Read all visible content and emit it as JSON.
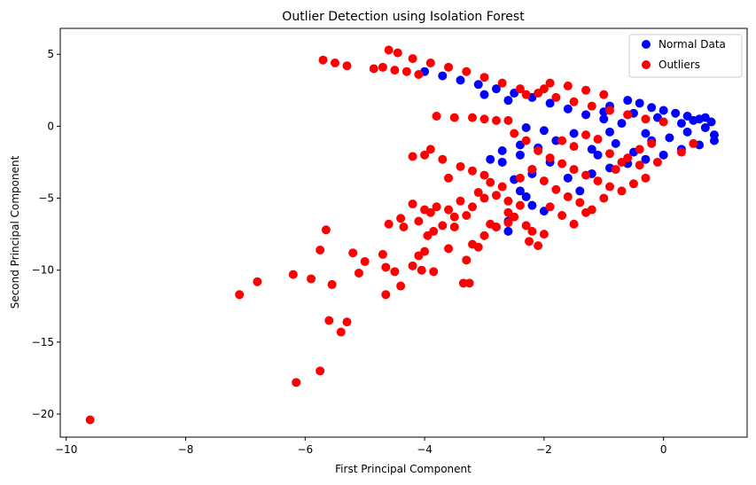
{
  "chart_data": {
    "type": "scatter",
    "title": "Outlier Detection using Isolation Forest",
    "xlabel": "First Principal Component",
    "ylabel": "Second Principal Component",
    "xlim": [
      -10.1,
      1.4
    ],
    "ylim": [
      -21.6,
      6.8
    ],
    "xticks": [
      -10,
      -8,
      -6,
      -4,
      -2,
      0
    ],
    "yticks": [
      -20,
      -15,
      -10,
      -5,
      0,
      5
    ],
    "grid": false,
    "legend_position": "top-right",
    "series": [
      {
        "name": "Normal Data",
        "color": "#0000ff",
        "points": [
          [
            -0.6,
            1.8
          ],
          [
            -0.4,
            1.6
          ],
          [
            -0.2,
            1.3
          ],
          [
            0.0,
            1.1
          ],
          [
            0.2,
            0.9
          ],
          [
            0.4,
            0.7
          ],
          [
            0.6,
            0.5
          ],
          [
            0.8,
            0.3
          ],
          [
            -0.9,
            1.4
          ],
          [
            -0.5,
            0.9
          ],
          [
            -0.1,
            0.6
          ],
          [
            0.3,
            0.2
          ],
          [
            0.7,
            -0.1
          ],
          [
            0.85,
            -0.6
          ],
          [
            0.85,
            -1.0
          ],
          [
            0.6,
            -1.3
          ],
          [
            0.3,
            -1.6
          ],
          [
            0.0,
            -2.0
          ],
          [
            -0.3,
            -2.3
          ],
          [
            -0.6,
            -2.6
          ],
          [
            -0.9,
            -2.9
          ],
          [
            -1.2,
            -3.3
          ],
          [
            -0.3,
            -0.5
          ],
          [
            0.1,
            -0.8
          ],
          [
            -0.7,
            0.2
          ],
          [
            -1.0,
            0.5
          ],
          [
            -1.3,
            0.8
          ],
          [
            -1.6,
            1.2
          ],
          [
            -1.9,
            1.6
          ],
          [
            -2.2,
            2.0
          ],
          [
            -2.5,
            2.3
          ],
          [
            -2.8,
            2.6
          ],
          [
            -3.1,
            2.9
          ],
          [
            -3.4,
            3.2
          ],
          [
            -3.7,
            3.5
          ],
          [
            -4.0,
            3.8
          ],
          [
            -1.5,
            -0.5
          ],
          [
            -1.8,
            -1.0
          ],
          [
            -2.1,
            -1.5
          ],
          [
            -2.4,
            -2.0
          ],
          [
            -2.7,
            -2.5
          ],
          [
            -2.7,
            -1.7
          ],
          [
            -2.3,
            -0.1
          ],
          [
            -2.0,
            -0.3
          ],
          [
            -2.4,
            -1.3
          ],
          [
            -2.2,
            -3.0
          ],
          [
            -2.4,
            -4.5
          ],
          [
            -2.2,
            -5.5
          ],
          [
            -2.0,
            -5.9
          ],
          [
            -2.6,
            -6.6
          ],
          [
            -2.6,
            -7.3
          ],
          [
            -2.8,
            -7.0
          ],
          [
            -1.4,
            -4.5
          ],
          [
            -1.1,
            -2.0
          ],
          [
            -0.8,
            -1.2
          ],
          [
            -0.5,
            -1.8
          ],
          [
            -0.2,
            -1.0
          ],
          [
            0.4,
            -0.4
          ],
          [
            0.5,
            0.4
          ],
          [
            0.7,
            0.6
          ],
          [
            -1.0,
            1.0
          ],
          [
            -0.6,
            0.8
          ],
          [
            -2.5,
            -3.7
          ],
          [
            -2.3,
            -4.9
          ],
          [
            -2.2,
            -3.3
          ],
          [
            -1.9,
            -2.5
          ],
          [
            -2.9,
            -2.3
          ],
          [
            -3.0,
            2.2
          ],
          [
            -2.6,
            1.8
          ],
          [
            -1.2,
            -1.6
          ],
          [
            -0.9,
            -0.4
          ],
          [
            -1.6,
            -3.6
          ]
        ]
      },
      {
        "name": "Outliers",
        "color": "#ff0000",
        "points": [
          [
            -9.6,
            -20.4
          ],
          [
            -6.15,
            -17.8
          ],
          [
            -5.75,
            -17.0
          ],
          [
            -7.1,
            -11.7
          ],
          [
            -6.8,
            -10.8
          ],
          [
            -6.2,
            -10.3
          ],
          [
            -5.9,
            -10.6
          ],
          [
            -5.65,
            -7.2
          ],
          [
            -5.75,
            -8.6
          ],
          [
            -5.55,
            -11.0
          ],
          [
            -5.6,
            -13.5
          ],
          [
            -5.4,
            -14.3
          ],
          [
            -5.3,
            -13.6
          ],
          [
            -5.1,
            -10.2
          ],
          [
            -5.0,
            -9.4
          ],
          [
            -5.2,
            -8.8
          ],
          [
            -4.65,
            -11.7
          ],
          [
            -4.4,
            -11.1
          ],
          [
            -4.7,
            -8.9
          ],
          [
            -4.65,
            -9.8
          ],
          [
            -4.5,
            -10.1
          ],
          [
            -4.6,
            -6.8
          ],
          [
            -4.4,
            -6.4
          ],
          [
            -4.35,
            -7.0
          ],
          [
            -4.2,
            -9.7
          ],
          [
            -4.05,
            -10.0
          ],
          [
            -3.85,
            -10.1
          ],
          [
            -4.0,
            -8.7
          ],
          [
            -4.1,
            -9.0
          ],
          [
            -3.95,
            -7.6
          ],
          [
            -3.85,
            -7.3
          ],
          [
            -3.6,
            -8.5
          ],
          [
            -3.7,
            -6.9
          ],
          [
            -3.5,
            -6.3
          ],
          [
            -3.35,
            -10.9
          ],
          [
            -3.25,
            -10.9
          ],
          [
            -3.3,
            -9.3
          ],
          [
            -3.2,
            -8.2
          ],
          [
            -3.1,
            -8.4
          ],
          [
            -3.0,
            -7.6
          ],
          [
            -2.9,
            -6.8
          ],
          [
            -2.8,
            -7.0
          ],
          [
            -2.6,
            -6.7
          ],
          [
            -2.5,
            -6.3
          ],
          [
            -2.3,
            -6.9
          ],
          [
            -2.2,
            -7.3
          ],
          [
            -2.25,
            -8.0
          ],
          [
            -2.1,
            -8.3
          ],
          [
            -4.2,
            -5.4
          ],
          [
            -4.0,
            -5.8
          ],
          [
            -3.8,
            -5.6
          ],
          [
            -3.6,
            -5.8
          ],
          [
            -3.4,
            -5.2
          ],
          [
            -3.2,
            -5.6
          ],
          [
            -3.0,
            -5.0
          ],
          [
            -2.8,
            -4.8
          ],
          [
            -2.7,
            -4.2
          ],
          [
            -2.6,
            -5.2
          ],
          [
            -3.9,
            -1.6
          ],
          [
            -3.7,
            -2.3
          ],
          [
            -3.4,
            -2.8
          ],
          [
            -3.2,
            -3.1
          ],
          [
            -3.0,
            -3.4
          ],
          [
            -3.8,
            0.7
          ],
          [
            -3.5,
            0.6
          ],
          [
            -3.2,
            0.6
          ],
          [
            -3.0,
            0.5
          ],
          [
            -2.8,
            0.4
          ],
          [
            -2.6,
            0.4
          ],
          [
            -4.0,
            -2.0
          ],
          [
            -4.2,
            -2.1
          ],
          [
            -5.7,
            4.6
          ],
          [
            -5.5,
            4.4
          ],
          [
            -5.3,
            4.2
          ],
          [
            -4.85,
            4.0
          ],
          [
            -4.7,
            4.1
          ],
          [
            -4.5,
            3.9
          ],
          [
            -4.3,
            3.8
          ],
          [
            -4.1,
            3.6
          ],
          [
            -4.6,
            5.3
          ],
          [
            -4.45,
            5.1
          ],
          [
            -4.2,
            4.7
          ],
          [
            -3.9,
            4.4
          ],
          [
            -3.6,
            4.1
          ],
          [
            -3.3,
            3.8
          ],
          [
            -3.0,
            3.4
          ],
          [
            -2.7,
            3.0
          ],
          [
            -2.4,
            2.6
          ],
          [
            -2.1,
            2.3
          ],
          [
            -1.8,
            2.0
          ],
          [
            -1.5,
            1.7
          ],
          [
            -1.2,
            1.4
          ],
          [
            -0.9,
            1.1
          ],
          [
            -0.6,
            0.8
          ],
          [
            -0.3,
            0.5
          ],
          [
            0.0,
            0.3
          ],
          [
            -1.9,
            3.0
          ],
          [
            -1.6,
            2.8
          ],
          [
            -1.3,
            2.5
          ],
          [
            -1.0,
            2.2
          ],
          [
            -2.3,
            2.2
          ],
          [
            -2.0,
            2.6
          ],
          [
            -2.5,
            -0.5
          ],
          [
            -2.3,
            -1.0
          ],
          [
            -2.1,
            -1.7
          ],
          [
            -1.9,
            -2.2
          ],
          [
            -1.7,
            -2.6
          ],
          [
            -1.5,
            -3.0
          ],
          [
            -1.3,
            -3.4
          ],
          [
            -1.1,
            -3.8
          ],
          [
            -0.9,
            -4.2
          ],
          [
            -0.7,
            -4.5
          ],
          [
            -0.5,
            -4.0
          ],
          [
            -0.3,
            -3.6
          ],
          [
            -2.4,
            -3.6
          ],
          [
            -2.2,
            -3.0
          ],
          [
            -2.0,
            -3.8
          ],
          [
            -1.8,
            -4.4
          ],
          [
            -1.6,
            -4.9
          ],
          [
            -1.4,
            -5.3
          ],
          [
            -1.2,
            -5.8
          ],
          [
            -1.0,
            -5.0
          ],
          [
            -0.8,
            -3.0
          ],
          [
            -0.6,
            -2.2
          ],
          [
            -0.4,
            -1.6
          ],
          [
            -0.2,
            -1.2
          ],
          [
            -1.7,
            -1.0
          ],
          [
            -1.5,
            -1.4
          ],
          [
            -1.3,
            -0.6
          ],
          [
            -1.1,
            -0.9
          ],
          [
            -0.9,
            -1.9
          ],
          [
            -0.7,
            -2.5
          ],
          [
            -1.9,
            -5.6
          ],
          [
            -1.7,
            -6.2
          ],
          [
            -1.5,
            -6.8
          ],
          [
            -1.3,
            -6.0
          ],
          [
            -2.0,
            -7.5
          ],
          [
            -3.6,
            -3.6
          ],
          [
            -3.1,
            -4.6
          ],
          [
            -2.9,
            -3.9
          ],
          [
            -0.4,
            -2.7
          ],
          [
            -0.1,
            -2.5
          ],
          [
            0.3,
            -1.8
          ],
          [
            0.5,
            -1.2
          ],
          [
            -2.6,
            -6.0
          ],
          [
            -2.4,
            -5.5
          ],
          [
            -3.3,
            -6.2
          ],
          [
            -3.5,
            -7.0
          ],
          [
            -3.9,
            -6.0
          ],
          [
            -4.1,
            -6.6
          ]
        ]
      }
    ]
  }
}
